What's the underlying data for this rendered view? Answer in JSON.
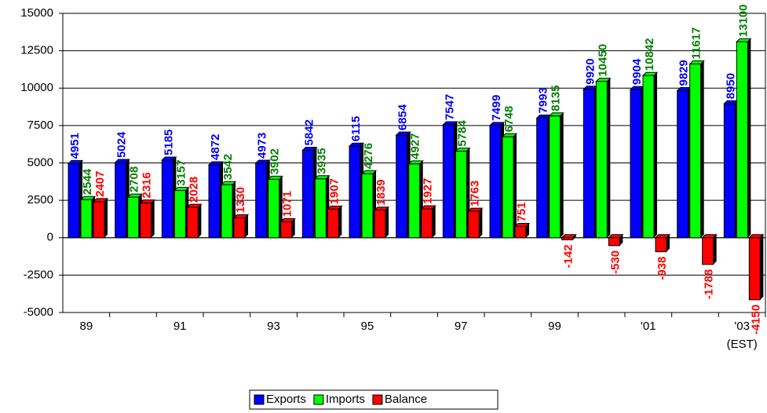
{
  "chart_data": {
    "type": "bar",
    "categories": [
      "89",
      null,
      "91",
      null,
      "93",
      null,
      "95",
      null,
      "97",
      null,
      "99",
      null,
      "'01",
      null,
      "'03"
    ],
    "annotations": [
      "(EST)"
    ],
    "series": [
      {
        "name": "Exports",
        "color": "#0000ff",
        "label_color": "#0000ff",
        "values": [
          4951,
          5024,
          5185,
          4872,
          4973,
          5842,
          6115,
          6854,
          7547,
          7499,
          7993,
          9920,
          9904,
          9829,
          8950
        ]
      },
      {
        "name": "Imports",
        "color": "#00ff00",
        "label_color": "#008000",
        "values": [
          2544,
          2708,
          3157,
          3542,
          3902,
          3935,
          4276,
          4927,
          5784,
          6748,
          8135,
          10450,
          10842,
          11617,
          13100
        ]
      },
      {
        "name": "Balance",
        "color": "#ff0000",
        "label_color": "#ff0000",
        "values": [
          2407,
          2316,
          2028,
          1330,
          1071,
          1907,
          1839,
          1927,
          1763,
          751,
          -142,
          -530,
          -938,
          -1788,
          -4150
        ]
      }
    ],
    "ylim": [
      -5000,
      15000
    ],
    "yticks": [
      -5000,
      -2500,
      0,
      2500,
      5000,
      7500,
      10000,
      12500,
      15000
    ],
    "grid": true,
    "legend": "bottom"
  }
}
